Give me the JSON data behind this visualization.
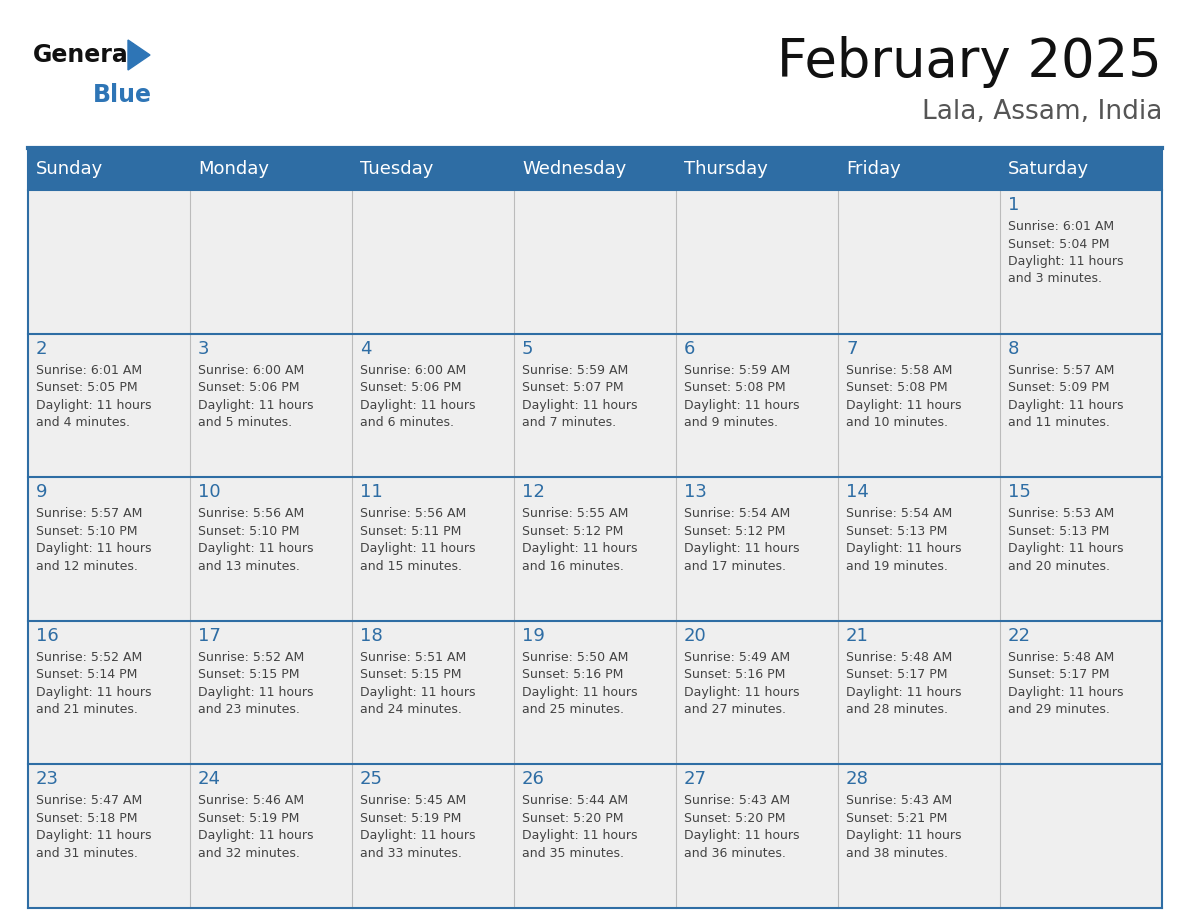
{
  "title": "February 2025",
  "subtitle": "Lala, Assam, India",
  "header_bg": "#2E6DA4",
  "header_text_color": "#FFFFFF",
  "weekdays": [
    "Sunday",
    "Monday",
    "Tuesday",
    "Wednesday",
    "Thursday",
    "Friday",
    "Saturday"
  ],
  "cell_bg": "#EFEFEF",
  "day_text_color": "#2E6DA4",
  "info_text_color": "#444444",
  "border_color": "#2E6DA4",
  "logo_text_general": "General",
  "logo_text_blue": "Blue",
  "logo_color": "#2E75B6",
  "logo_black": "#111111",
  "calendar": [
    [
      null,
      null,
      null,
      null,
      null,
      null,
      {
        "day": "1",
        "sunrise": "6:01 AM",
        "sunset": "5:04 PM",
        "dl1": "Daylight: 11 hours",
        "dl2": "and 3 minutes."
      }
    ],
    [
      {
        "day": "2",
        "sunrise": "6:01 AM",
        "sunset": "5:05 PM",
        "dl1": "Daylight: 11 hours",
        "dl2": "and 4 minutes."
      },
      {
        "day": "3",
        "sunrise": "6:00 AM",
        "sunset": "5:06 PM",
        "dl1": "Daylight: 11 hours",
        "dl2": "and 5 minutes."
      },
      {
        "day": "4",
        "sunrise": "6:00 AM",
        "sunset": "5:06 PM",
        "dl1": "Daylight: 11 hours",
        "dl2": "and 6 minutes."
      },
      {
        "day": "5",
        "sunrise": "5:59 AM",
        "sunset": "5:07 PM",
        "dl1": "Daylight: 11 hours",
        "dl2": "and 7 minutes."
      },
      {
        "day": "6",
        "sunrise": "5:59 AM",
        "sunset": "5:08 PM",
        "dl1": "Daylight: 11 hours",
        "dl2": "and 9 minutes."
      },
      {
        "day": "7",
        "sunrise": "5:58 AM",
        "sunset": "5:08 PM",
        "dl1": "Daylight: 11 hours",
        "dl2": "and 10 minutes."
      },
      {
        "day": "8",
        "sunrise": "5:57 AM",
        "sunset": "5:09 PM",
        "dl1": "Daylight: 11 hours",
        "dl2": "and 11 minutes."
      }
    ],
    [
      {
        "day": "9",
        "sunrise": "5:57 AM",
        "sunset": "5:10 PM",
        "dl1": "Daylight: 11 hours",
        "dl2": "and 12 minutes."
      },
      {
        "day": "10",
        "sunrise": "5:56 AM",
        "sunset": "5:10 PM",
        "dl1": "Daylight: 11 hours",
        "dl2": "and 13 minutes."
      },
      {
        "day": "11",
        "sunrise": "5:56 AM",
        "sunset": "5:11 PM",
        "dl1": "Daylight: 11 hours",
        "dl2": "and 15 minutes."
      },
      {
        "day": "12",
        "sunrise": "5:55 AM",
        "sunset": "5:12 PM",
        "dl1": "Daylight: 11 hours",
        "dl2": "and 16 minutes."
      },
      {
        "day": "13",
        "sunrise": "5:54 AM",
        "sunset": "5:12 PM",
        "dl1": "Daylight: 11 hours",
        "dl2": "and 17 minutes."
      },
      {
        "day": "14",
        "sunrise": "5:54 AM",
        "sunset": "5:13 PM",
        "dl1": "Daylight: 11 hours",
        "dl2": "and 19 minutes."
      },
      {
        "day": "15",
        "sunrise": "5:53 AM",
        "sunset": "5:13 PM",
        "dl1": "Daylight: 11 hours",
        "dl2": "and 20 minutes."
      }
    ],
    [
      {
        "day": "16",
        "sunrise": "5:52 AM",
        "sunset": "5:14 PM",
        "dl1": "Daylight: 11 hours",
        "dl2": "and 21 minutes."
      },
      {
        "day": "17",
        "sunrise": "5:52 AM",
        "sunset": "5:15 PM",
        "dl1": "Daylight: 11 hours",
        "dl2": "and 23 minutes."
      },
      {
        "day": "18",
        "sunrise": "5:51 AM",
        "sunset": "5:15 PM",
        "dl1": "Daylight: 11 hours",
        "dl2": "and 24 minutes."
      },
      {
        "day": "19",
        "sunrise": "5:50 AM",
        "sunset": "5:16 PM",
        "dl1": "Daylight: 11 hours",
        "dl2": "and 25 minutes."
      },
      {
        "day": "20",
        "sunrise": "5:49 AM",
        "sunset": "5:16 PM",
        "dl1": "Daylight: 11 hours",
        "dl2": "and 27 minutes."
      },
      {
        "day": "21",
        "sunrise": "5:48 AM",
        "sunset": "5:17 PM",
        "dl1": "Daylight: 11 hours",
        "dl2": "and 28 minutes."
      },
      {
        "day": "22",
        "sunrise": "5:48 AM",
        "sunset": "5:17 PM",
        "dl1": "Daylight: 11 hours",
        "dl2": "and 29 minutes."
      }
    ],
    [
      {
        "day": "23",
        "sunrise": "5:47 AM",
        "sunset": "5:18 PM",
        "dl1": "Daylight: 11 hours",
        "dl2": "and 31 minutes."
      },
      {
        "day": "24",
        "sunrise": "5:46 AM",
        "sunset": "5:19 PM",
        "dl1": "Daylight: 11 hours",
        "dl2": "and 32 minutes."
      },
      {
        "day": "25",
        "sunrise": "5:45 AM",
        "sunset": "5:19 PM",
        "dl1": "Daylight: 11 hours",
        "dl2": "and 33 minutes."
      },
      {
        "day": "26",
        "sunrise": "5:44 AM",
        "sunset": "5:20 PM",
        "dl1": "Daylight: 11 hours",
        "dl2": "and 35 minutes."
      },
      {
        "day": "27",
        "sunrise": "5:43 AM",
        "sunset": "5:20 PM",
        "dl1": "Daylight: 11 hours",
        "dl2": "and 36 minutes."
      },
      {
        "day": "28",
        "sunrise": "5:43 AM",
        "sunset": "5:21 PM",
        "dl1": "Daylight: 11 hours",
        "dl2": "and 38 minutes."
      },
      null
    ]
  ],
  "fig_width": 11.88,
  "fig_height": 9.18,
  "dpi": 100
}
